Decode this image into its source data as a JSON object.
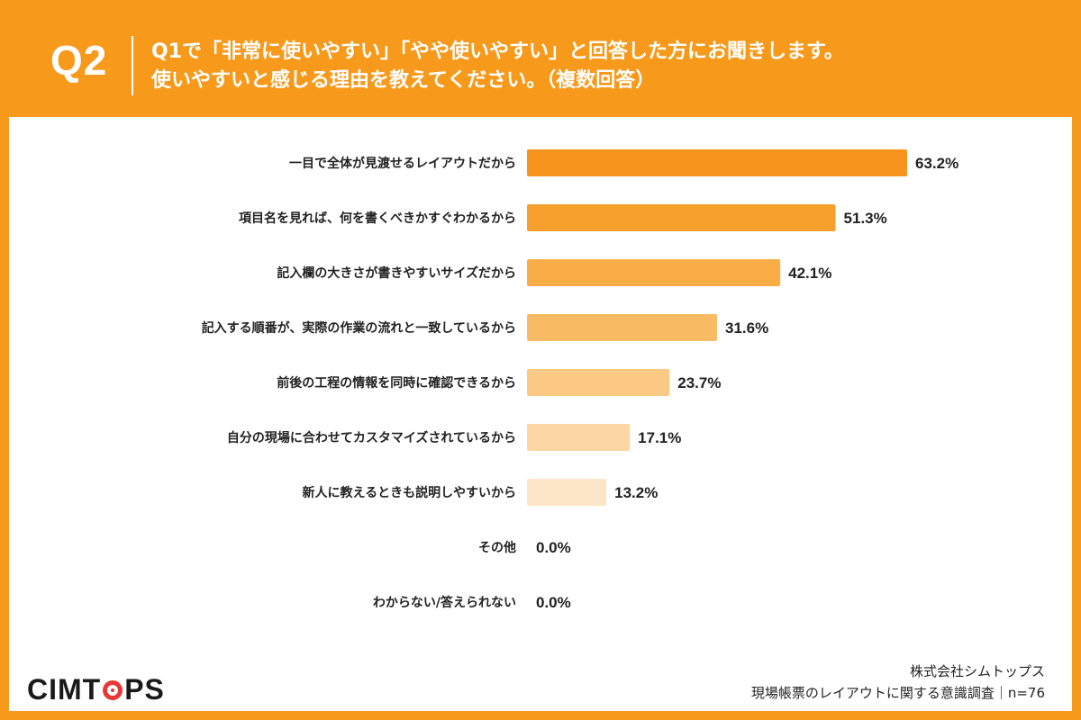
{
  "header": {
    "question_number": "Q2",
    "question_line1": "Q1で「非常に使いやすい」「やや使いやすい」と回答した方にお聞きします。",
    "question_line2": "使いやすいと感じる理由を教えてください。（複数回答）"
  },
  "footer": {
    "logo_text_1": "CIMT",
    "logo_text_2": "PS",
    "company": "株式会社シムトップス",
    "survey": "現場帳票のレイアウトに関する意識調査｜n=76"
  },
  "chart_data": {
    "type": "bar",
    "orientation": "horizontal",
    "categories": [
      "一目で全体が見渡せるレイアウトだから",
      "項目名を見れば、何を書くべきかすぐわかるから",
      "記入欄の大きさが書きやすいサイズだから",
      "記入する順番が、実際の作業の流れと一致しているから",
      "前後の工程の情報を同時に確認できるから",
      "自分の現場に合わせてカスタマイズされているから",
      "新人に教えるときも説明しやすいから",
      "その他",
      "わからない/答えられない"
    ],
    "values": [
      63.2,
      51.3,
      42.1,
      31.6,
      23.7,
      17.1,
      13.2,
      0.0,
      0.0
    ],
    "value_labels": [
      "63.2%",
      "51.3%",
      "42.1%",
      "31.6%",
      "23.7%",
      "17.1%",
      "13.2%",
      "0.0%",
      "0.0%"
    ],
    "colors": [
      "#F7941D",
      "#F8A02E",
      "#F9AD47",
      "#FABB65",
      "#FBC983",
      "#FCD7A3",
      "#FDE6C8",
      "#FEEEDB",
      "#FEEEDB"
    ],
    "xlim": [
      0,
      100
    ],
    "grid": false,
    "legend": "none"
  }
}
